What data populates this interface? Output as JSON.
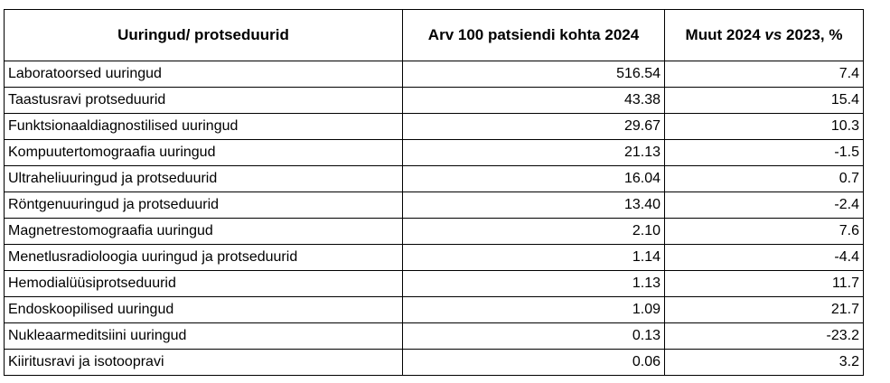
{
  "table": {
    "headers": {
      "procedure": "Uuringud/ protseduurid",
      "per_100": "Arv 100 patsiendi kohta 2024",
      "change_prefix": "Muut 2024 ",
      "change_vs": "vs",
      "change_suffix": " 2023, %"
    },
    "rows": [
      {
        "name": "Laboratoorsed uuringud",
        "per_100": "516.54",
        "change": "7.4"
      },
      {
        "name": "Taastusravi protseduurid",
        "per_100": "43.38",
        "change": "15.4"
      },
      {
        "name": "Funktsionaaldiagnostilised uuringud",
        "per_100": "29.67",
        "change": "10.3"
      },
      {
        "name": "Kompuutertomograafia uuringud",
        "per_100": "21.13",
        "change": "-1.5"
      },
      {
        "name": "Ultraheliuuringud ja protseduurid",
        "per_100": "16.04",
        "change": "0.7"
      },
      {
        "name": "Röntgenuuringud ja protseduurid",
        "per_100": "13.40",
        "change": "-2.4"
      },
      {
        "name": "Magnetrestomograafia uuringud",
        "per_100": "2.10",
        "change": "7.6"
      },
      {
        "name": "Menetlusradioloogia uuringud ja protseduurid",
        "per_100": "1.14",
        "change": "-4.4"
      },
      {
        "name": "Hemodialüüsiprotseduurid",
        "per_100": "1.13",
        "change": "11.7"
      },
      {
        "name": "Endoskoopilised uuringud",
        "per_100": "1.09",
        "change": "21.7"
      },
      {
        "name": "Nukleaarmeditsiini uuringud",
        "per_100": "0.13",
        "change": "-23.2"
      },
      {
        "name": "Kiiritusravi ja isotoopravi",
        "per_100": "0.06",
        "change": "3.2"
      }
    ]
  }
}
